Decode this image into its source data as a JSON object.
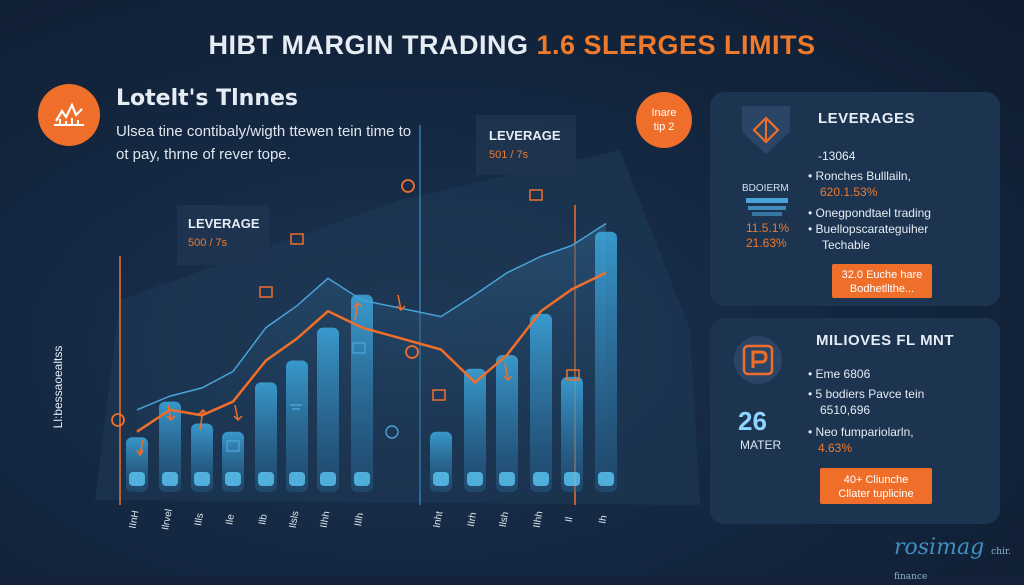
{
  "title": {
    "main": "HIBT MARGIN TRADING",
    "accent": "1.6 SLERGES LIMITS"
  },
  "subtitle": "Lotelt's Tlnnes",
  "description": "Ulsea tine contibaly/wigth ttewen tein time to ot pay, thrne of rever tope.",
  "y_axis_label": "Ll:bessaoealtss",
  "badge": {
    "line1": "Inare",
    "line2": "tip 2"
  },
  "callouts": [
    {
      "label": "LEVERAGE",
      "value": "500 / 7s"
    },
    {
      "label": "LEVERAGE",
      "value": "501 / 7s"
    }
  ],
  "panel1": {
    "title": "LEVERAGES",
    "value_top": "-13064",
    "side_label": "BDOIERM",
    "side_values": [
      "11.5.1%",
      "21.63%"
    ],
    "items": [
      {
        "text": "Ronches Bulllailn,",
        "sub": "620.1.53%"
      },
      {
        "text": "Onegpondtael trading",
        "sub": ""
      },
      {
        "text": "Buellopscarateguiher",
        "sub": ""
      },
      {
        "text": "Techable",
        "sub": ""
      }
    ],
    "button": {
      "line1": "32.0 Euche hare",
      "line2": "Bodhetllthe..."
    }
  },
  "panel2": {
    "title": "MILIOVES FL MNT",
    "items": [
      {
        "text": "Eme 6806",
        "sub": ""
      },
      {
        "text": "5 bodiers Pavce tein",
        "sub": "6510,696"
      },
      {
        "text": "Neo fumpariolarln,",
        "sub": "4.63%"
      }
    ],
    "big_number": "26",
    "big_label": "MATER",
    "button": {
      "line1": "40+ Cliunche",
      "line2": "Cllater tuplicine"
    }
  },
  "watermark": {
    "main": "rosimag",
    "small": "chir.\nfinance"
  },
  "colors": {
    "background": "#132238",
    "accent": "#ef6f2a",
    "line_light": "#4aa3d8",
    "bar": "#3da9e0",
    "panel": "#1c3450"
  },
  "chart_data": {
    "type": "bar",
    "categories": [
      "IInH",
      "Ilrvel",
      "IIls",
      "Ile",
      "Ilb",
      "Ilsls",
      "IIhh",
      "IIlh",
      "Inht",
      "IIrh",
      "Ilsh",
      "IIhh",
      "Il",
      "Ih"
    ],
    "series": [
      {
        "values": [
          20,
          33,
          25,
          22,
          40,
          48,
          60,
          72,
          22,
          45,
          50,
          65,
          42,
          95
        ]
      }
    ],
    "lines": [
      {
        "values": [
          22,
          30,
          28,
          33,
          48,
          56,
          66,
          60,
          52,
          40,
          50,
          66,
          74,
          80
        ]
      },
      {
        "values": [
          30,
          35,
          38,
          44,
          60,
          68,
          78,
          70,
          64,
          72,
          80,
          86,
          90,
          98
        ]
      }
    ],
    "ylim": [
      0,
      100
    ]
  }
}
